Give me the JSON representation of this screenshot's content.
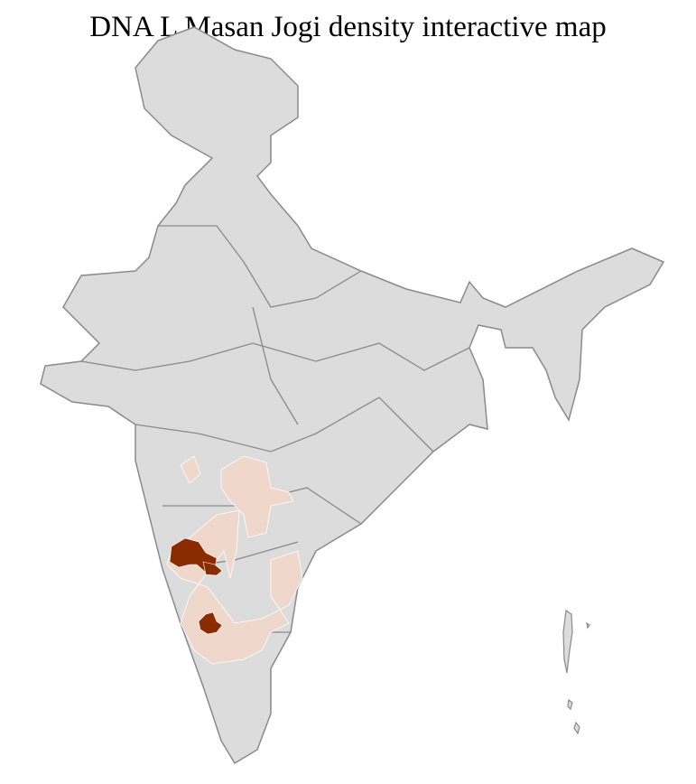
{
  "title": "DNA L Masan Jogi density interactive map",
  "colors": {
    "no_data": "#dcdcdc",
    "border": "#8a8a8a",
    "district_line": "#ffffff",
    "low_density": "#efd8cb",
    "high_density": "#8b2c00"
  }
}
